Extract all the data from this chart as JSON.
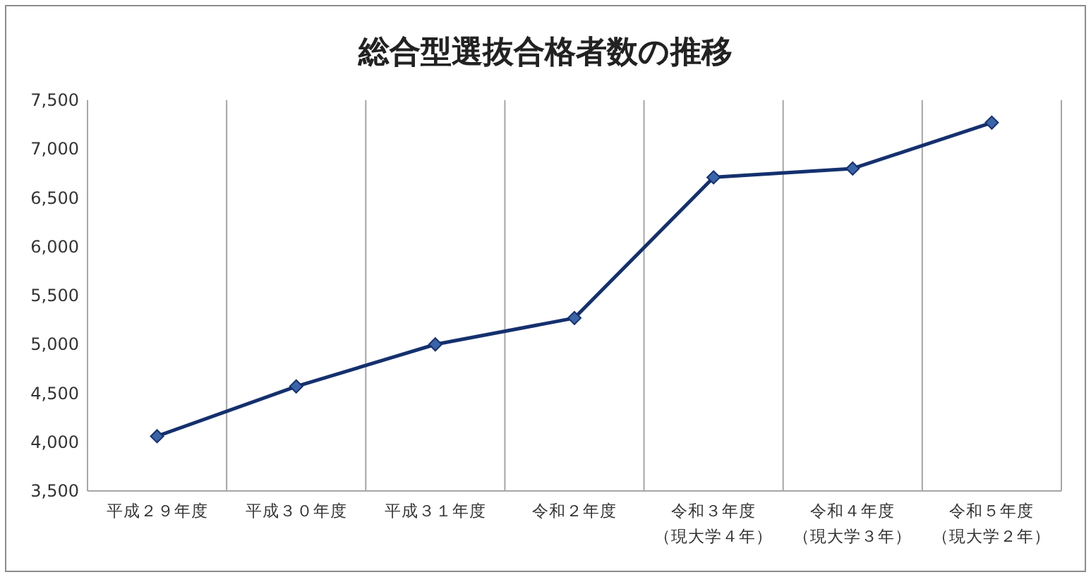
{
  "chart_data": {
    "type": "line",
    "title": "総合型選抜合格者数の推移",
    "categories": [
      "平成２９年度",
      "平成３０年度",
      "平成３１年度",
      "令和２年度",
      "令和３年度（現大学４年）",
      "令和４年度（現大学３年）",
      "令和５年度（現大学２年）"
    ],
    "series": [
      {
        "color": "#14306e",
        "values": [
          4060,
          4570,
          5000,
          5270,
          6710,
          6800,
          7270
        ]
      }
    ],
    "ylim": [
      3500,
      7500
    ],
    "yticks": [
      {
        "value": 3500,
        "label": "3,500"
      },
      {
        "value": 4000,
        "label": "4,000"
      },
      {
        "value": 4500,
        "label": "4,500"
      },
      {
        "value": 5000,
        "label": "5,000"
      },
      {
        "value": 5500,
        "label": "5,500"
      },
      {
        "value": 6000,
        "label": "6,000"
      },
      {
        "value": 6500,
        "label": "6,500"
      },
      {
        "value": 7000,
        "label": "7,000"
      },
      {
        "value": 7500,
        "label": "7,500"
      }
    ],
    "grid": "x",
    "marker": "diamond",
    "line_style": "solid"
  }
}
